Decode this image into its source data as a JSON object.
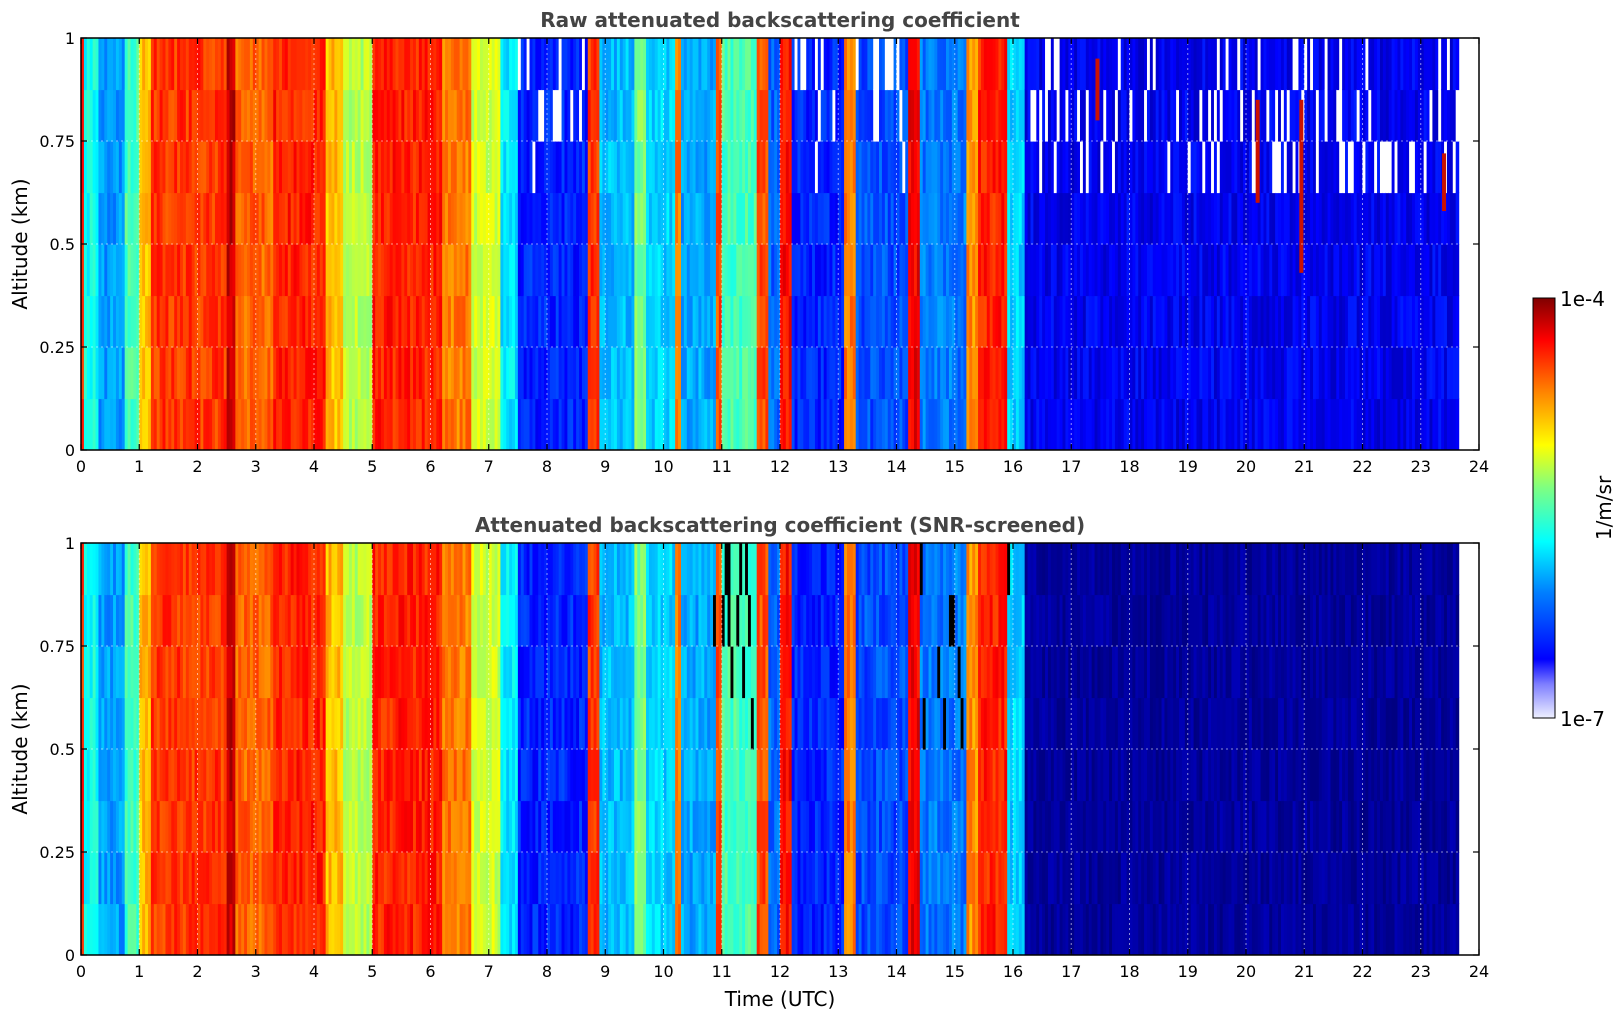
{
  "chart_data": [
    {
      "type": "heatmap",
      "title": "Raw attenuated backscattering coefficient",
      "xlabel": "",
      "ylabel": "Altitude (km)",
      "xlim": [
        0,
        24
      ],
      "ylim": [
        0,
        1
      ],
      "xticks": [
        "0",
        "1",
        "2",
        "3",
        "4",
        "5",
        "6",
        "7",
        "8",
        "9",
        "10",
        "11",
        "12",
        "13",
        "14",
        "15",
        "16",
        "17",
        "18",
        "19",
        "20",
        "21",
        "22",
        "23",
        "24"
      ],
      "yticks": [
        "0",
        "0.25",
        "0.5",
        "0.75",
        "1"
      ],
      "grid": true,
      "data_end_time": 23.65,
      "segments": [
        {
          "t0": 0.0,
          "t1": 0.05,
          "level": 0.85
        },
        {
          "t0": 0.05,
          "t1": 0.3,
          "level": 0.45
        },
        {
          "t0": 0.3,
          "t1": 0.75,
          "level": 0.35
        },
        {
          "t0": 0.75,
          "t1": 1.0,
          "level": 0.5
        },
        {
          "t0": 1.0,
          "t1": 1.2,
          "level": 0.72
        },
        {
          "t0": 1.2,
          "t1": 2.5,
          "level": 0.84
        },
        {
          "t0": 2.5,
          "t1": 2.65,
          "level": 0.94
        },
        {
          "t0": 2.65,
          "t1": 3.3,
          "level": 0.8
        },
        {
          "t0": 3.3,
          "t1": 4.2,
          "level": 0.86
        },
        {
          "t0": 4.2,
          "t1": 4.5,
          "level": 0.72
        },
        {
          "t0": 4.5,
          "t1": 5.0,
          "level": 0.6
        },
        {
          "t0": 5.0,
          "t1": 6.2,
          "level": 0.86
        },
        {
          "t0": 6.2,
          "t1": 6.7,
          "level": 0.78
        },
        {
          "t0": 6.7,
          "t1": 7.2,
          "level": 0.62
        },
        {
          "t0": 7.2,
          "t1": 7.5,
          "level": 0.42
        },
        {
          "t0": 7.5,
          "t1": 8.7,
          "level": 0.24
        },
        {
          "t0": 8.7,
          "t1": 8.9,
          "level": 0.84
        },
        {
          "t0": 8.9,
          "t1": 9.5,
          "level": 0.38
        },
        {
          "t0": 9.5,
          "t1": 9.7,
          "level": 0.55
        },
        {
          "t0": 9.7,
          "t1": 10.2,
          "level": 0.4
        },
        {
          "t0": 10.2,
          "t1": 10.3,
          "level": 0.78
        },
        {
          "t0": 10.3,
          "t1": 10.9,
          "level": 0.36
        },
        {
          "t0": 10.9,
          "t1": 11.0,
          "level": 0.82
        },
        {
          "t0": 11.0,
          "t1": 11.6,
          "level": 0.5
        },
        {
          "t0": 11.6,
          "t1": 11.8,
          "level": 0.82
        },
        {
          "t0": 11.8,
          "t1": 12.0,
          "level": 0.3
        },
        {
          "t0": 12.0,
          "t1": 12.2,
          "level": 0.88
        },
        {
          "t0": 12.2,
          "t1": 13.1,
          "level": 0.24
        },
        {
          "t0": 13.1,
          "t1": 13.3,
          "level": 0.78
        },
        {
          "t0": 13.3,
          "t1": 14.2,
          "level": 0.28
        },
        {
          "t0": 14.2,
          "t1": 14.4,
          "level": 0.9
        },
        {
          "t0": 14.4,
          "t1": 15.2,
          "level": 0.32
        },
        {
          "t0": 15.2,
          "t1": 15.4,
          "level": 0.76
        },
        {
          "t0": 15.4,
          "t1": 15.9,
          "level": 0.86
        },
        {
          "t0": 15.9,
          "t1": 16.2,
          "level": 0.4
        },
        {
          "t0": 16.2,
          "t1": 23.65,
          "level": 0.2
        }
      ],
      "cloud_streaks": [
        {
          "t": 17.45,
          "z0": 0.8,
          "z1": 0.95
        },
        {
          "t": 20.2,
          "z0": 0.6,
          "z1": 0.85
        },
        {
          "t": 20.95,
          "z0": 0.43,
          "z1": 0.85
        },
        {
          "t": 23.4,
          "z0": 0.58,
          "z1": 0.72
        }
      ]
    },
    {
      "type": "heatmap",
      "title": "Attenuated backscattering coefficient (SNR-screened)",
      "xlabel": "Time (UTC)",
      "ylabel": "Altitude (km)",
      "xlim": [
        0,
        24
      ],
      "ylim": [
        0,
        1
      ],
      "xticks": [
        "0",
        "1",
        "2",
        "3",
        "4",
        "5",
        "6",
        "7",
        "8",
        "9",
        "10",
        "11",
        "12",
        "13",
        "14",
        "15",
        "16",
        "17",
        "18",
        "19",
        "20",
        "21",
        "22",
        "23",
        "24"
      ],
      "yticks": [
        "0",
        "0.25",
        "0.5",
        "0.75",
        "1"
      ],
      "grid": true,
      "data_end_time": 23.65,
      "screened_after": 16.2,
      "screened_level": 0.1
    }
  ],
  "colorbar": {
    "label": "1/m/sr",
    "max_label": "1e-4",
    "min_label": "1e-7",
    "scale": "log",
    "colormap": "jet"
  },
  "colors": {
    "title": "#444444",
    "missing": "#ffffff",
    "screened": "#000000"
  }
}
